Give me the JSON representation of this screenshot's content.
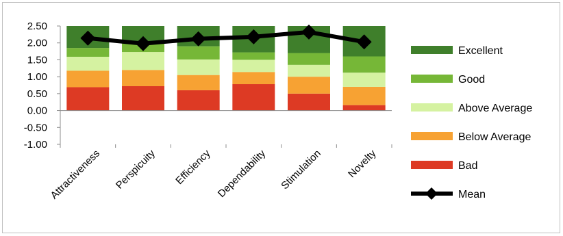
{
  "chart_data": {
    "type": "bar",
    "stacked": true,
    "categories": [
      "Attractiveness",
      "Perspicuity",
      "Efficiency",
      "Dependability",
      "Stimulation",
      "Novelty"
    ],
    "series": [
      {
        "name": "Bad",
        "color": "#dd3a24",
        "values": [
          0.69,
          0.72,
          0.6,
          0.78,
          0.5,
          0.16
        ]
      },
      {
        "name": "Below Average",
        "color": "#f7a233",
        "values": [
          0.49,
          0.48,
          0.45,
          0.36,
          0.5,
          0.54
        ]
      },
      {
        "name": "Above Average",
        "color": "#d5f2a1",
        "values": [
          0.41,
          0.53,
          0.46,
          0.36,
          0.35,
          0.42
        ]
      },
      {
        "name": "Good",
        "color": "#76b737",
        "values": [
          0.26,
          0.31,
          0.39,
          0.22,
          0.35,
          0.48
        ]
      },
      {
        "name": "Excellent",
        "color": "#3f7f2b",
        "values": [
          0.65,
          0.46,
          0.6,
          0.78,
          0.8,
          0.9
        ]
      }
    ],
    "mean": {
      "name": "Mean",
      "color": "#000000",
      "values": [
        2.14,
        1.98,
        2.12,
        2.18,
        2.32,
        2.03
      ]
    },
    "yticks": [
      "2.50",
      "2.00",
      "1.50",
      "1.00",
      "0.50",
      "0.00",
      "-0.50",
      "-1.00"
    ],
    "ylim": [
      -1.0,
      2.5
    ],
    "legend_position": "right",
    "grid": false
  }
}
